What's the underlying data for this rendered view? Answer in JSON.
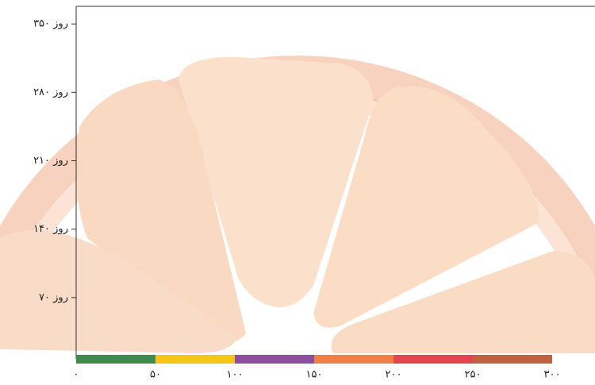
{
  "chart_data": {
    "type": "segments",
    "segments": [
      {
        "start": 0,
        "end": 50,
        "color": "#3d8b4f"
      },
      {
        "start": 50,
        "end": 100,
        "color": "#f5c518"
      },
      {
        "start": 100,
        "end": 150,
        "color": "#8e4e9e"
      },
      {
        "start": 150,
        "end": 200,
        "color": "#ef7f45"
      },
      {
        "start": 200,
        "end": 250,
        "color": "#e2474f"
      },
      {
        "start": 250,
        "end": 300,
        "color": "#c0613f"
      }
    ],
    "xlim": [
      0,
      327
    ],
    "xticks": [
      {
        "value": 0,
        "label": "۰"
      },
      {
        "value": 50,
        "label": "۵۰"
      },
      {
        "value": 100,
        "label": "۱۰۰"
      },
      {
        "value": 150,
        "label": "۱۵۰"
      },
      {
        "value": 200,
        "label": "۲۰۰"
      },
      {
        "value": 250,
        "label": "۲۵۰"
      },
      {
        "value": 300,
        "label": "۳۰۰"
      }
    ],
    "ylim": [
      0,
      368
    ],
    "yticks": [
      {
        "value": 70,
        "label": "۷۰ روز"
      },
      {
        "value": 140,
        "label": "۱۴۰ روز"
      },
      {
        "value": 210,
        "label": "۲۱۰ روز"
      },
      {
        "value": 280,
        "label": "۲۸۰ روز"
      },
      {
        "value": 350,
        "label": "۳۵۰ روز"
      }
    ]
  }
}
